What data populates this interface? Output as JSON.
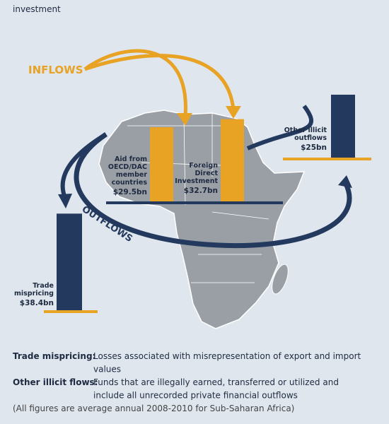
{
  "header": {
    "text": "investment"
  },
  "labels": {
    "inflows": "INFLOWS",
    "outflows": "OUTFLOWS"
  },
  "bars": [
    {
      "label_lines": [
        "Trade",
        "mispricing"
      ],
      "value": 38.4,
      "value_label": "$38.4bn",
      "color": "#24395e"
    },
    {
      "label_lines": [
        "Aid from",
        "OECD/DAC",
        "member",
        "countries"
      ],
      "value": 29.5,
      "value_label": "$29.5bn",
      "color": "#e8a224"
    },
    {
      "label_lines": [
        "Foreign",
        "Direct",
        "Investment"
      ],
      "value": 32.7,
      "value_label": "$32.7bn",
      "color": "#e8a224"
    },
    {
      "label_lines": [
        "Other illicit",
        "outflows"
      ],
      "value": 25,
      "value_label": "$25bn",
      "color": "#24395e"
    }
  ],
  "definitions": [
    {
      "term": "Trade mispricing:",
      "lines": [
        "Losses associated with misrepresentation of export and import",
        "values"
      ]
    },
    {
      "term": "Other illicit flows:",
      "lines": [
        "Funds that are illegally earned, transferred or utilized and",
        "include all unrecorded private financial outflows"
      ]
    }
  ],
  "footnote": "(All figures are average annual 2008-2010 for Sub-Saharan Africa)"
}
